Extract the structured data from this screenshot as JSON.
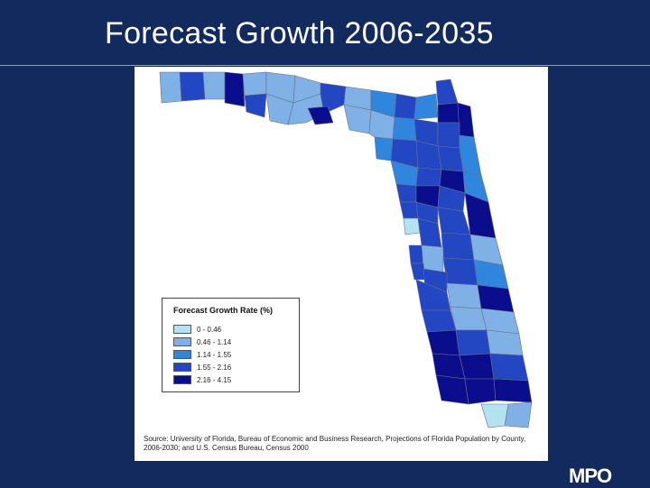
{
  "slide": {
    "title": "Forecast Growth 2006-2035",
    "logo_text": "MPO"
  },
  "legend": {
    "title": "Forecast Growth Rate (%)",
    "classes": [
      {
        "label": "0 - 0.46",
        "color": "#b3e3f1"
      },
      {
        "label": "0.46 - 1.14",
        "color": "#7fb0e6"
      },
      {
        "label": "1.14 - 1.55",
        "color": "#2f86dc"
      },
      {
        "label": "1.55 - 2.16",
        "color": "#2346c2"
      },
      {
        "label": "2.16 - 4.15",
        "color": "#0a0e8c"
      }
    ]
  },
  "source": {
    "text": "Source: University of Florida, Bureau of Economic and Business Research, Projections of Florida Population by County, 2006-2030; and U.S. Census Bureau, Census 2000"
  },
  "colors": {
    "background": "#132a5e",
    "map_panel": "#ffffff",
    "county_border": "#6d6d8a"
  }
}
